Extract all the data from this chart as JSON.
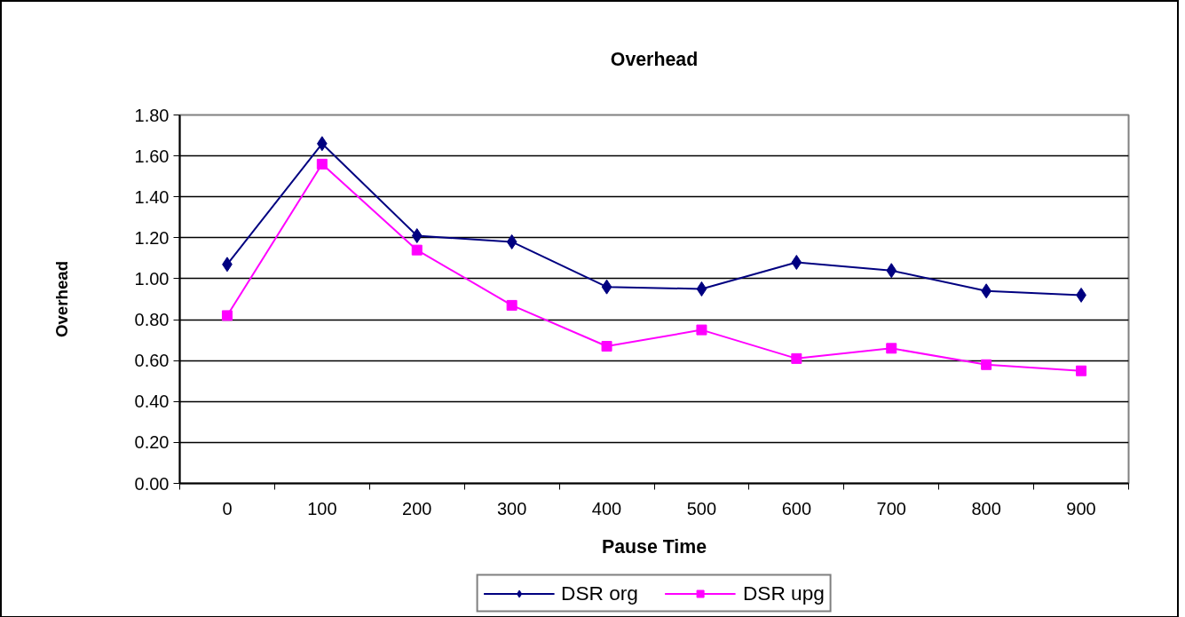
{
  "chart_data": {
    "type": "line",
    "title": "Overhead",
    "xlabel": "Pause Time",
    "ylabel": "Overhead",
    "categories": [
      "0",
      "100",
      "200",
      "300",
      "400",
      "500",
      "600",
      "700",
      "800",
      "900"
    ],
    "series": [
      {
        "name": "DSR org",
        "color": "#000080",
        "marker": "diamond",
        "values": [
          1.07,
          1.66,
          1.21,
          1.18,
          0.96,
          0.95,
          1.08,
          1.04,
          0.94,
          0.92
        ]
      },
      {
        "name": "DSR upg",
        "color": "#ff00ff",
        "marker": "square",
        "values": [
          0.82,
          1.56,
          1.14,
          0.87,
          0.67,
          0.75,
          0.61,
          0.66,
          0.58,
          0.55
        ]
      }
    ],
    "ylim": [
      0,
      1.8
    ],
    "yticks": [
      {
        "value": 0,
        "label": "0.00"
      },
      {
        "value": 0.2,
        "label": "0.20"
      },
      {
        "value": 0.4,
        "label": "0.40"
      },
      {
        "value": 0.6,
        "label": "0.60"
      },
      {
        "value": 0.8,
        "label": "0.80"
      },
      {
        "value": 1.0,
        "label": "1.00"
      },
      {
        "value": 1.2,
        "label": "1.20"
      },
      {
        "value": 1.4,
        "label": "1.40"
      },
      {
        "value": 1.6,
        "label": "1.60"
      },
      {
        "value": 1.8,
        "label": "1.80"
      }
    ],
    "grid": "y",
    "legend": "bottom"
  }
}
